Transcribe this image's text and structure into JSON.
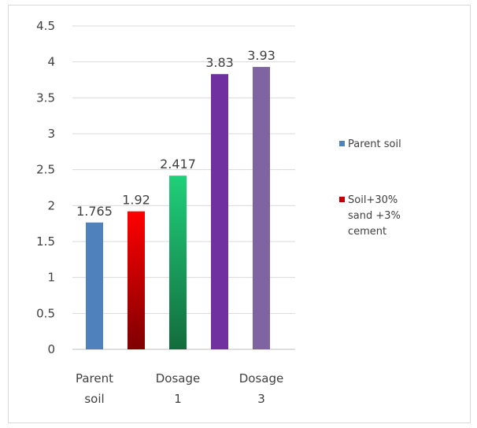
{
  "chart_data": {
    "type": "bar",
    "title": "",
    "xlabel": "",
    "ylabel": "",
    "ylim": [
      0,
      4.5
    ],
    "yticks": [
      "0",
      "0.5",
      "1",
      "1.5",
      "2",
      "2.5",
      "3",
      "3.5",
      "4",
      "4.5"
    ],
    "grid": true,
    "legend_position": "right",
    "x_labels": [
      {
        "lines": [
          "Parent",
          "soil"
        ]
      },
      {
        "lines": [
          "Dosage",
          "1"
        ]
      },
      {
        "lines": [
          "Dosage",
          "3"
        ]
      }
    ],
    "bars": [
      {
        "value": 1.765,
        "label": "1.765",
        "color_top": "#4f81bd",
        "color_bottom": "#4f81bd"
      },
      {
        "value": 1.92,
        "label": "1.92",
        "color_top": "#ff0000",
        "color_bottom": "#7f0000"
      },
      {
        "value": 2.417,
        "label": "2.417",
        "color_top": "#1fd07a",
        "color_bottom": "#136c3d"
      },
      {
        "value": 3.83,
        "label": "3.83",
        "color_top": "#7030a0",
        "color_bottom": "#7030a0"
      },
      {
        "value": 3.93,
        "label": "3.93",
        "color_top": "#8064a2",
        "color_bottom": "#8064a2"
      }
    ],
    "legend": [
      {
        "lines": [
          "Parent soil"
        ],
        "color": "#4f81bd"
      },
      {
        "lines": [
          "Soil+30%",
          "sand +3%",
          "cement"
        ],
        "color": "#c00000"
      }
    ]
  }
}
